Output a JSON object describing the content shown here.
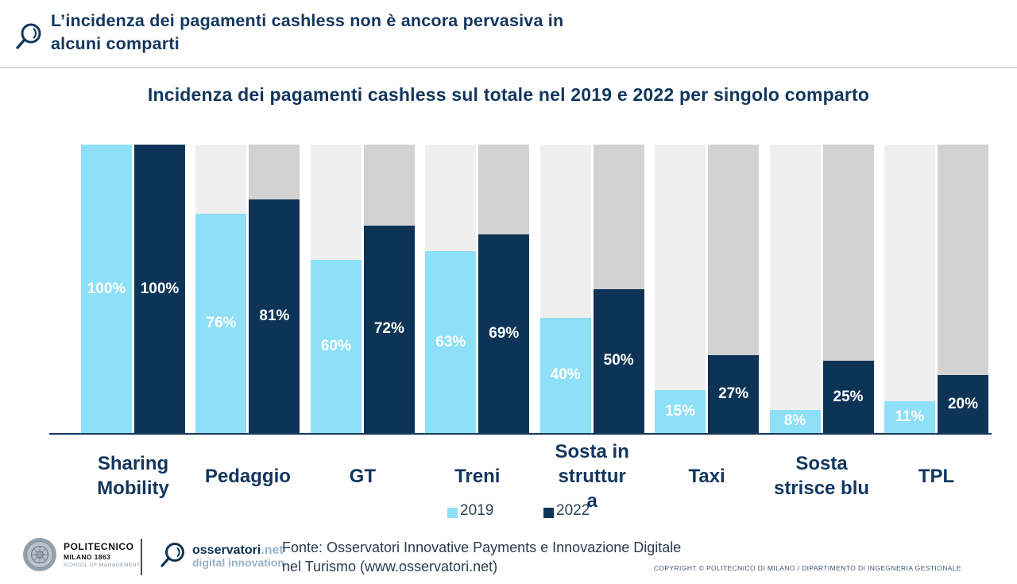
{
  "header": {
    "title": "L’incidenza dei pagamenti cashless non è ancora pervasiva in\nalcuni comparti"
  },
  "chart_title": "Incidenza dei pagamenti cashless sul totale nel 2019 e 2022 per singolo comparto",
  "chart_data": {
    "type": "bar",
    "title": "Incidenza dei pagamenti cashless sul totale nel 2019 e 2022 per singolo comparto",
    "categories": [
      "Sharing Mobility",
      "Pedaggio",
      "GT",
      "Treni",
      "Sosta in struttura",
      "Taxi",
      "Sosta strisce blu",
      "TPL"
    ],
    "category_label_lines": [
      [
        "Sharing",
        "Mobility"
      ],
      [
        "Pedaggio"
      ],
      [
        "GT"
      ],
      [
        "Treni"
      ],
      [
        "Sosta in",
        "struttur",
        "a"
      ],
      [
        "Taxi"
      ],
      [
        "Sosta",
        "strisce blu"
      ],
      [
        "TPL"
      ]
    ],
    "series": [
      {
        "name": "2019",
        "color": "#8EDFF8",
        "track_color": "#F0EFEF",
        "values": [
          100,
          76,
          60,
          63,
          40,
          15,
          8,
          11
        ]
      },
      {
        "name": "2022",
        "color": "#0D3456",
        "track_color": "#D2D2D2",
        "values": [
          100,
          81,
          72,
          69,
          50,
          27,
          25,
          20
        ]
      }
    ],
    "value_suffix": "%",
    "ylim": [
      0,
      100
    ],
    "grid": false,
    "legend_position": "bottom"
  },
  "legend": {
    "items": [
      {
        "label": "2019",
        "color": "#8EDFF8"
      },
      {
        "label": "2022",
        "color": "#0D3456"
      }
    ]
  },
  "footer": {
    "polimi": {
      "line1": "POLITECNICO",
      "line2": "MILANO 1863",
      "line3": "SCHOOL OF MANAGEMENT"
    },
    "osservatori": {
      "brand": "osservatori",
      "brand_suffix": ".net",
      "tagline": "digital innovation"
    },
    "fonte": "Fonte: Osservatori Innovative Payments e Innovazione Digitale\nnel Turismo (www.osservatori.net)",
    "copyright": "COPYRIGHT © POLITECNICO DI MILANO / DIPARTIMENTO DI INGEGNERIA GESTIONALE"
  },
  "colors": {
    "title_navy": "#12365D",
    "bar_2019": "#8EDFF8",
    "bar_2022": "#0D3456",
    "track_2019": "#F0EFEF",
    "track_2022": "#D2D2D2",
    "baseline": "#16395C"
  }
}
